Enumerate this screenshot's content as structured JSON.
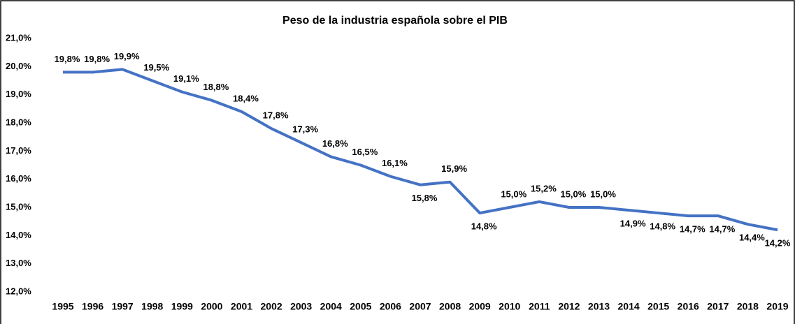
{
  "chart_data": {
    "type": "line",
    "title": "Peso de la industria española sobre el PIB",
    "categories": [
      "1995",
      "1996",
      "1997",
      "1998",
      "1999",
      "2000",
      "2001",
      "2002",
      "2003",
      "2004",
      "2005",
      "2006",
      "2007",
      "2008",
      "2009",
      "2010",
      "2011",
      "2012",
      "2013",
      "2014",
      "2015",
      "2016",
      "2017",
      "2018",
      "2019"
    ],
    "series": [
      {
        "color": "#4472c4",
        "values": [
          19.8,
          19.8,
          19.9,
          19.5,
          19.1,
          18.8,
          18.4,
          17.8,
          17.3,
          16.8,
          16.5,
          16.1,
          15.8,
          15.9,
          14.8,
          15.0,
          15.2,
          15.0,
          15.0,
          14.9,
          14.8,
          14.7,
          14.7,
          14.4,
          14.2
        ],
        "value_labels": [
          "19,8%",
          "19,8%",
          "19,9%",
          "19,5%",
          "19,1%",
          "18,8%",
          "18,4%",
          "17,8%",
          "17,3%",
          "16,8%",
          "16,5%",
          "16,1%",
          "15,8%",
          "15,9%",
          "14,8%",
          "15,0%",
          "15,2%",
          "15,0%",
          "15,0%",
          "14,9%",
          "14,8%",
          "14,7%",
          "14,7%",
          "14,4%",
          "14,2%"
        ]
      }
    ],
    "ylim": [
      12,
      21
    ],
    "yticks": [
      {
        "value": 12,
        "label": "12,0%"
      },
      {
        "value": 13,
        "label": "13,0%"
      },
      {
        "value": 14,
        "label": "14,0%"
      },
      {
        "value": 15,
        "label": "15,0%"
      },
      {
        "value": 16,
        "label": "16,0%"
      },
      {
        "value": 17,
        "label": "17,0%"
      },
      {
        "value": 18,
        "label": "18,0%"
      },
      {
        "value": 19,
        "label": "19,0%"
      },
      {
        "value": 20,
        "label": "20,0%"
      },
      {
        "value": 21,
        "label": "21,0%"
      }
    ],
    "grid": false
  }
}
